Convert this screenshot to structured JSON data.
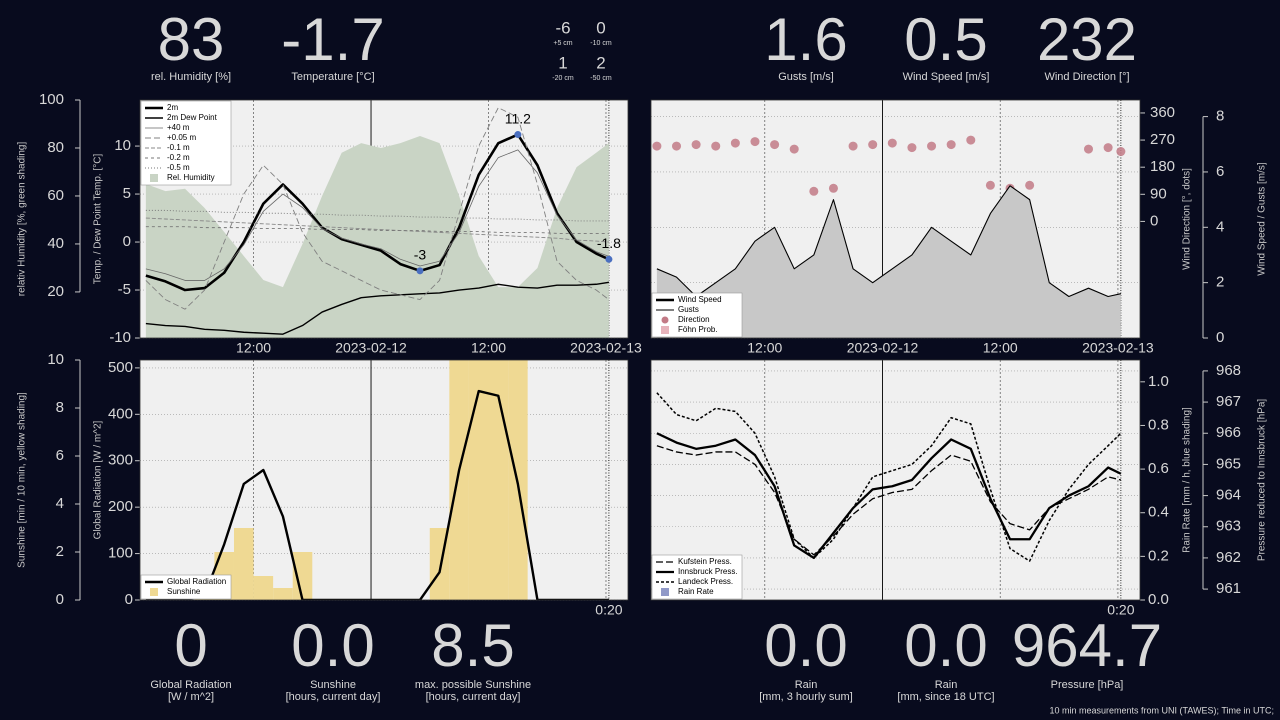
{
  "readouts": {
    "top": [
      {
        "value": "83",
        "label": "rel. Humidity [%]"
      },
      {
        "value": "-1.7",
        "label": "Temperature [°C]"
      },
      {
        "value": "1.6",
        "label": "Gusts [m/s]"
      },
      {
        "value": "0.5",
        "label": "Wind Speed [m/s]"
      },
      {
        "value": "232",
        "label": "Wind Direction [°]"
      }
    ],
    "soil": [
      {
        "value": "-6",
        "label": "+5 cm"
      },
      {
        "value": "0",
        "label": "-10 cm"
      },
      {
        "value": "1",
        "label": "-20 cm"
      },
      {
        "value": "2",
        "label": "-50 cm"
      }
    ],
    "bottom": [
      {
        "value": "0",
        "label": [
          "Global Radiation",
          "[W / m^2]"
        ]
      },
      {
        "value": "0.0",
        "label": [
          "Sunshine",
          "[hours, current day]"
        ]
      },
      {
        "value": "8.5",
        "label": [
          "max. possible Sunshine",
          "[hours, current day]"
        ]
      },
      {
        "value": "0.0",
        "label": [
          "Rain",
          "[mm, 3 hourly sum]"
        ]
      },
      {
        "value": "0.0",
        "label": [
          "Rain",
          "[mm, since 18 UTC]"
        ]
      },
      {
        "value": "964.7",
        "label": [
          "Pressure [hPa]"
        ]
      }
    ]
  },
  "footer": "10 min measurements from UNI (TAWES); Time in UTC;",
  "chart_data": [
    {
      "type": "line",
      "ylabel": "Temp. / Dew Point Temp. [°C]",
      "y2label": "relativ Humidity [%, green shading]",
      "x": [
        -23,
        -21,
        -19,
        -17,
        -15,
        -13,
        -11,
        -9,
        -7,
        -5,
        -3,
        -1,
        1,
        3,
        5,
        7,
        9,
        11,
        13,
        15,
        17,
        19,
        21,
        23,
        24.3
      ],
      "xlim": [
        -23.6,
        26.25
      ],
      "xticks": [
        {
          "value": -12,
          "label": "12:00"
        },
        {
          "value": 0,
          "label": "2023-02-12"
        },
        {
          "value": 12,
          "label": "12:00"
        },
        {
          "value": 24,
          "label": "2023-02-13"
        }
      ],
      "ylim": [
        -10,
        14.8
      ],
      "yticks": [
        -10,
        -5,
        0,
        5,
        10
      ],
      "y2lim": [
        0.8,
        100
      ],
      "y2ticks": [
        20,
        40,
        60,
        80,
        100
      ],
      "grid": true,
      "legend": "upper left",
      "series": [
        {
          "name": "2m",
          "style": "line",
          "color": "#000000",
          "width": 2.6,
          "values": [
            -3.5,
            -4.1,
            -5.0,
            -4.8,
            -3.2,
            0.0,
            4.0,
            6.0,
            4.0,
            1.5,
            0.3,
            -0.3,
            -0.9,
            -2.3,
            -3.0,
            -2.4,
            1.5,
            7.0,
            10.3,
            11.2,
            8.0,
            3.0,
            0.0,
            -1.2,
            -1.8
          ]
        },
        {
          "name": "2m Dew Point",
          "style": "line",
          "color": "#000000",
          "width": 1.4,
          "values": [
            -8.5,
            -8.7,
            -8.8,
            -9.1,
            -9.2,
            -9.4,
            -9.5,
            -9.6,
            -8.7,
            -7.3,
            -6.5,
            -5.8,
            -5.6,
            -5.5,
            -5.4,
            -5.3,
            -5.0,
            -4.8,
            -4.4,
            -4.7,
            -4.8,
            -4.5,
            -4.5,
            -4.4,
            -4.2
          ]
        },
        {
          "name": "+40 m",
          "style": "line",
          "color": "#666666",
          "width": 0.8,
          "values": [
            -2.8,
            -3.3,
            -4.0,
            -4.0,
            -2.8,
            -0.3,
            3.2,
            5.0,
            3.6,
            1.4,
            0.4,
            -0.2,
            -0.7,
            -1.8,
            -2.5,
            -2.0,
            1.0,
            5.8,
            8.8,
            9.6,
            7.2,
            2.8,
            0.2,
            -1.0,
            -1.5
          ]
        },
        {
          "name": "+0.05 m",
          "style": "line",
          "color": "#808080",
          "width": 0.9,
          "dash": "6 3",
          "values": [
            -4,
            -6,
            -7,
            -5,
            0,
            5,
            8,
            6,
            1,
            -2,
            -3,
            -4,
            -5,
            -5.5,
            -6,
            -4,
            3,
            10,
            14,
            13,
            6,
            -2,
            -4,
            -5,
            -6
          ]
        },
        {
          "name": "-0.1 m",
          "style": "line",
          "color": "#888888",
          "width": 0.9,
          "dash": "4 2",
          "values": [
            2.5,
            2.4,
            2.3,
            2.2,
            2.1,
            2.0,
            1.9,
            1.8,
            1.7,
            1.6,
            1.5,
            1.4,
            1.3,
            1.2,
            1.1,
            1.0,
            0.9,
            0.8,
            0.7,
            0.6,
            0.5,
            0.4,
            0.2,
            0.1,
            0
          ]
        },
        {
          "name": "-0.2 m",
          "style": "line",
          "color": "#777777",
          "width": 0.9,
          "dash": "3 3",
          "values": [
            1.6,
            1.6,
            1.6,
            1.5,
            1.5,
            1.5,
            1.4,
            1.4,
            1.4,
            1.3,
            1.3,
            1.3,
            1.2,
            1.2,
            1.2,
            1.1,
            1.1,
            1.1,
            1.0,
            1.0,
            1.0,
            0.9,
            0.9,
            0.9,
            0.9
          ]
        },
        {
          "name": "-0.5 m",
          "style": "line",
          "color": "#777777",
          "width": 0.9,
          "dash": "1 2",
          "values": [
            3.3,
            3.3,
            3.2,
            3.2,
            3.1,
            3.1,
            3.0,
            3.0,
            2.9,
            2.9,
            2.8,
            2.8,
            2.7,
            2.7,
            2.6,
            2.6,
            2.5,
            2.5,
            2.4,
            2.4,
            2.3,
            2.3,
            2.2,
            2.2,
            2.2
          ]
        },
        {
          "name": "Rel. Humidity",
          "style": "area",
          "color": "#c9d4c5",
          "axis": "y2",
          "values": [
            65,
            62,
            63,
            55,
            45,
            35,
            25,
            22,
            40,
            60,
            78,
            82,
            80,
            82,
            85,
            82,
            60,
            35,
            22,
            22,
            30,
            55,
            72,
            78,
            82
          ]
        }
      ],
      "annotations": [
        {
          "x": 15,
          "value": 11.2
        },
        {
          "x": 5,
          "value": -3
        },
        {
          "x": 24.3,
          "value": -1.8
        }
      ],
      "annotation_color": "#4a6fc0"
    },
    {
      "type": "line",
      "ylabel": "Wind Speed  / Gusts [m/s]",
      "y2label": "Wind Direction [°, dots]",
      "x": [
        -23,
        -21,
        -19,
        -17,
        -15,
        -13,
        -11,
        -9,
        -7,
        -5,
        -3,
        -1,
        1,
        3,
        5,
        7,
        9,
        11,
        13,
        15,
        17,
        19,
        21,
        23,
        24.3
      ],
      "xlim": [
        -23.6,
        26.25
      ],
      "xticks": [
        {
          "value": -12,
          "label": "12:00"
        },
        {
          "value": 0,
          "label": "2023-02-12"
        },
        {
          "value": 12,
          "label": "12:00"
        },
        {
          "value": 24,
          "label": "2023-02-13"
        }
      ],
      "ylim": [
        0,
        8.6
      ],
      "yticks": [
        0,
        2,
        4,
        6,
        8
      ],
      "y2lim": [
        -387,
        403
      ],
      "y2ticks": [
        0,
        90,
        180,
        270,
        360
      ],
      "grid": true,
      "legend": "lower left",
      "series": [
        {
          "name": "Wind Speed",
          "style": "line",
          "color": "#000000",
          "width": 2.6,
          "values": [
            1.0,
            0.8,
            0.6,
            0.8,
            1.0,
            1.2,
            1.5,
            0.8,
            1.0,
            1.5,
            0.8,
            0.6,
            0.8,
            1.0,
            1.4,
            1.2,
            1.0,
            1.5,
            3.2,
            3.0,
            0.8,
            0.5,
            0.7,
            0.6,
            0.5
          ]
        },
        {
          "name": "Gusts",
          "style": "line",
          "color": "#000000",
          "width": 1.1,
          "fill": "#c8c8c8",
          "values": [
            2.5,
            2.2,
            1.5,
            2.0,
            2.5,
            3.5,
            4.0,
            2.5,
            3.0,
            5.0,
            2.5,
            2.0,
            2.5,
            3.0,
            4.0,
            3.5,
            3.0,
            4.5,
            5.5,
            5.0,
            2.0,
            1.5,
            1.8,
            1.5,
            1.6
          ]
        },
        {
          "name": "Direction",
          "style": "scatter",
          "color": "#c27a86",
          "axis": "y2",
          "values": [
            250,
            250,
            255,
            250,
            260,
            265,
            255,
            240,
            100,
            110,
            250,
            255,
            260,
            245,
            250,
            255,
            270,
            120,
            110,
            120,
            null,
            null,
            240,
            245,
            232
          ]
        },
        {
          "name": "Föhn Prob.",
          "style": "bar",
          "color": "#e6b3bb",
          "values": [
            0,
            0,
            0,
            0,
            0,
            0,
            0,
            0,
            0,
            0,
            0,
            0,
            0,
            0,
            0,
            0,
            0,
            0,
            0,
            0,
            0,
            0,
            0,
            0,
            0
          ]
        }
      ]
    },
    {
      "type": "line",
      "ylabel": "Global Radiation [W / m^2]",
      "y2label": "Sunshine [min / 10 min, yellow shading]",
      "x": [
        -23,
        -21,
        -19,
        -17,
        -15,
        -13,
        -11,
        -9,
        -7,
        -5,
        -3,
        -1,
        1,
        3,
        5,
        7,
        9,
        11,
        13,
        15,
        17,
        19,
        21,
        23,
        24.3
      ],
      "xlim": [
        -23.6,
        26.25
      ],
      "xticks": [
        -12,
        0,
        12,
        24
      ],
      "ylim": [
        0,
        517
      ],
      "yticks": [
        0,
        100,
        200,
        300,
        400,
        500
      ],
      "y2lim": [
        0,
        10
      ],
      "y2ticks": [
        0,
        2,
        4,
        6,
        8,
        10
      ],
      "grid": true,
      "legend": "lower left",
      "now_label": "0:20",
      "series": [
        {
          "name": "Global Radiation",
          "style": "line",
          "color": "#000000",
          "width": 2.4,
          "values": [
            0,
            0,
            0,
            10,
            120,
            250,
            280,
            180,
            0,
            0,
            0,
            0,
            0,
            0,
            0,
            60,
            280,
            450,
            440,
            250,
            0,
            0,
            0,
            0,
            0
          ]
        },
        {
          "name": "Sunshine",
          "style": "bar",
          "color": "#efd993",
          "axis": "y2",
          "values": [
            0,
            0,
            0,
            0.5,
            2,
            3,
            1,
            0.5,
            2,
            0,
            0,
            0,
            0,
            0,
            0,
            3,
            10,
            10,
            10,
            10,
            0,
            0,
            0,
            0,
            0
          ]
        }
      ]
    },
    {
      "type": "line",
      "ylabel": "Pressure reduced to Innsbruck [hPa]",
      "y2label": "Rain Rate [mm / h, blue shading]",
      "x": [
        -23,
        -21,
        -19,
        -17,
        -15,
        -13,
        -11,
        -9,
        -7,
        -5,
        -3,
        -1,
        1,
        3,
        5,
        7,
        9,
        11,
        13,
        15,
        17,
        19,
        21,
        23,
        24.3
      ],
      "xlim": [
        -23.6,
        26.25
      ],
      "xticks": [
        -12,
        0,
        12,
        24
      ],
      "ylim": [
        960.65,
        968.35
      ],
      "yticks": [
        961,
        962,
        963,
        964,
        965,
        966,
        967,
        968
      ],
      "y2lim": [
        0,
        1.1
      ],
      "y2ticks": [
        {
          "value": 0,
          "label": "0.0"
        },
        0.2,
        0.4,
        0.6,
        0.8,
        {
          "value": 1,
          "label": "1.0"
        }
      ],
      "grid": true,
      "legend": "lower left",
      "now_label": "0:20",
      "series": [
        {
          "name": "Kufstein Press.",
          "style": "line",
          "color": "#000000",
          "width": 1.3,
          "dash": "7 3",
          "values": [
            965.6,
            965.4,
            965.3,
            965.4,
            965.4,
            965.0,
            964.1,
            962.6,
            962.1,
            962.7,
            963.4,
            963.9,
            964.1,
            964.2,
            964.8,
            965.3,
            965.1,
            963.8,
            963.1,
            962.9,
            963.6,
            963.9,
            964.2,
            964.6,
            964.5
          ]
        },
        {
          "name": "Innsbruck Press.",
          "style": "line",
          "color": "#000000",
          "width": 2.3,
          "values": [
            966.0,
            965.7,
            965.5,
            965.6,
            965.8,
            965.3,
            964.3,
            962.4,
            962.0,
            962.8,
            963.6,
            964.2,
            964.3,
            964.5,
            965.2,
            965.8,
            965.5,
            963.9,
            962.6,
            962.6,
            963.6,
            964.0,
            964.3,
            964.9,
            964.7
          ]
        },
        {
          "name": "Landeck Press.",
          "style": "line",
          "color": "#000000",
          "width": 1.5,
          "dash": "3 2",
          "values": [
            967.3,
            966.6,
            966.4,
            966.8,
            966.7,
            966.0,
            964.6,
            962.6,
            962.0,
            962.6,
            963.6,
            964.6,
            964.8,
            965.0,
            965.6,
            966.5,
            966.3,
            964.2,
            962.3,
            961.9,
            963.2,
            964.2,
            965.0,
            965.6,
            966.0
          ]
        },
        {
          "name": "Rain Rate",
          "style": "bar",
          "color": "#9099c8",
          "axis": "y2",
          "values": [
            0,
            0,
            0,
            0,
            0,
            0,
            0,
            0,
            0,
            0,
            0,
            0,
            0,
            0,
            0,
            0,
            0,
            0,
            0,
            0,
            0,
            0,
            0,
            0,
            0
          ]
        }
      ]
    }
  ]
}
